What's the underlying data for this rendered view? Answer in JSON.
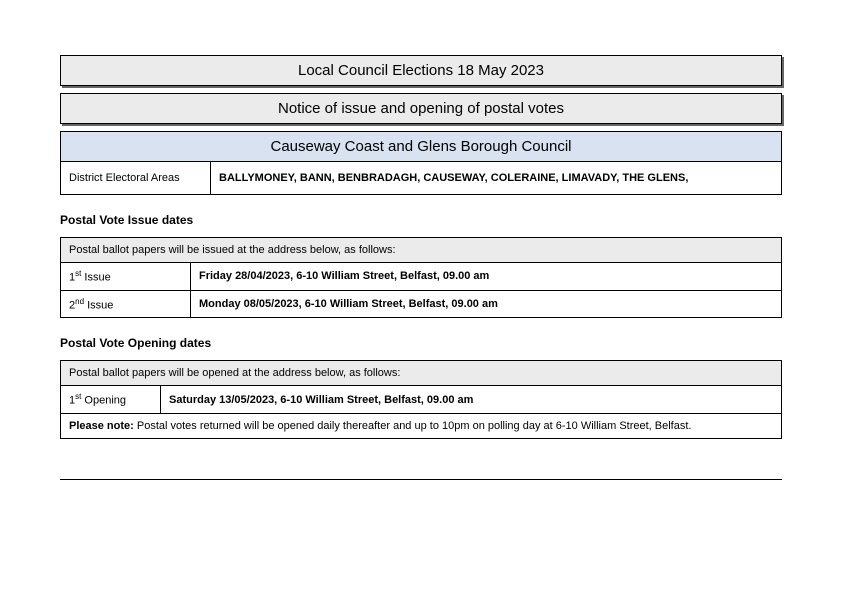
{
  "header": {
    "title1": "Local Council Elections 18 May 2023",
    "title2": "Notice of issue and opening of postal votes"
  },
  "council": {
    "name": "Causeway Coast and Glens Borough Council",
    "dea_label": "District Electoral Areas",
    "dea_list": "BALLYMONEY, BANN,  BENBRADAGH,  CAUSEWAY,  COLERAINE, LIMAVADY,  THE GLENS,"
  },
  "issue": {
    "heading": "Postal Vote Issue dates",
    "intro": "Postal ballot papers will be issued at the address below, as follows:",
    "rows": [
      {
        "ord": "1",
        "suffix": "st",
        "label": " Issue",
        "value": "Friday 28/04/2023, 6-10 William Street, Belfast, 09.00 am"
      },
      {
        "ord": "2",
        "suffix": "nd",
        "label": " Issue",
        "value": "Monday 08/05/2023, 6-10 William Street, Belfast, 09.00 am"
      }
    ]
  },
  "opening": {
    "heading": "Postal Vote Opening dates",
    "intro": "Postal ballot papers will be opened at the address below, as follows:",
    "rows": [
      {
        "ord": "1",
        "suffix": "st",
        "label": " Opening",
        "value": "Saturday 13/05/2023, 6-10 William Street, Belfast, 09.00 am"
      }
    ],
    "note_label": "Please note:",
    "note_text": "  Postal votes returned will be opened daily thereafter and up to 10pm on polling day at 6-10 William Street, Belfast."
  },
  "colors": {
    "title_bg": "#ebebeb",
    "council_bg": "#d8e2f0",
    "border": "#000000"
  }
}
